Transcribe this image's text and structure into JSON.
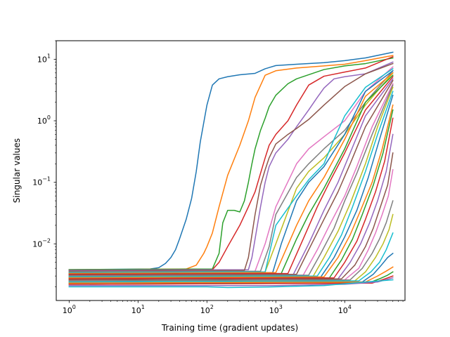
{
  "chart_data": {
    "type": "line",
    "title": "",
    "xlabel": "Training time (gradient updates)",
    "ylabel": "Singular values",
    "xscale": "log",
    "yscale": "log",
    "xlim": [
      0.65,
      75000
    ],
    "ylim": [
      0.0012,
      20
    ],
    "grid": false,
    "legend": "none",
    "x_ticks": [
      {
        "value": 1,
        "label": "10",
        "exp": "0"
      },
      {
        "value": 10,
        "label": "10",
        "exp": "1"
      },
      {
        "value": 100,
        "label": "10",
        "exp": "2"
      },
      {
        "value": 1000,
        "label": "10",
        "exp": "3"
      },
      {
        "value": 10000,
        "label": "10",
        "exp": "4"
      }
    ],
    "y_ticks": [
      {
        "value": 0.01,
        "label": "10",
        "exp": "−2"
      },
      {
        "value": 0.1,
        "label": "10",
        "exp": "−1"
      },
      {
        "value": 1,
        "label": "10",
        "exp": "0"
      },
      {
        "value": 10,
        "label": "10",
        "exp": "1"
      }
    ],
    "palette": [
      "#1f77b4",
      "#ff7f0e",
      "#2ca02c",
      "#d62728",
      "#9467bd",
      "#8c564b",
      "#e377c2",
      "#7f7f7f",
      "#bcbd22",
      "#17becf"
    ],
    "series": [
      {
        "color": "#1f77b4",
        "x": [
          1,
          15,
          20,
          25,
          30,
          35,
          40,
          50,
          60,
          70,
          80,
          100,
          120,
          150,
          200,
          300,
          500,
          700,
          1000,
          2000,
          5000,
          10000,
          20000,
          50000
        ],
        "y": [
          0.0038,
          0.0039,
          0.0041,
          0.0048,
          0.006,
          0.008,
          0.012,
          0.025,
          0.055,
          0.15,
          0.45,
          1.8,
          3.8,
          4.8,
          5.2,
          5.6,
          5.9,
          7.0,
          7.9,
          8.3,
          8.8,
          9.5,
          10.5,
          13
        ]
      },
      {
        "color": "#ff7f0e",
        "x": [
          1,
          50,
          70,
          90,
          100,
          120,
          150,
          200,
          300,
          400,
          500,
          700,
          1000,
          2000,
          5000,
          10000,
          20000,
          50000
        ],
        "y": [
          0.0038,
          0.0039,
          0.0045,
          0.007,
          0.009,
          0.015,
          0.04,
          0.13,
          0.4,
          1.0,
          2.4,
          5.5,
          6.5,
          7.2,
          7.8,
          8.3,
          9.5,
          11.5
        ]
      },
      {
        "color": "#2ca02c",
        "x": [
          1,
          120,
          150,
          170,
          200,
          250,
          300,
          350,
          400,
          450,
          500,
          600,
          700,
          800,
          1000,
          1500,
          2000,
          3000,
          5000,
          10000,
          20000,
          50000
        ],
        "y": [
          0.0038,
          0.0039,
          0.007,
          0.022,
          0.035,
          0.035,
          0.033,
          0.05,
          0.1,
          0.2,
          0.35,
          0.7,
          1.1,
          1.7,
          2.6,
          4.0,
          4.8,
          5.6,
          6.8,
          7.8,
          8.5,
          10.5
        ]
      },
      {
        "color": "#d62728",
        "x": [
          1,
          120,
          150,
          200,
          300,
          400,
          500,
          600,
          700,
          800,
          1000,
          1500,
          2000,
          3000,
          5000,
          10000,
          20000,
          50000
        ],
        "y": [
          0.0037,
          0.0038,
          0.005,
          0.009,
          0.02,
          0.04,
          0.07,
          0.14,
          0.25,
          0.4,
          0.6,
          1.0,
          1.8,
          3.8,
          5.3,
          6.2,
          7.2,
          11
        ]
      },
      {
        "color": "#9467bd",
        "x": [
          1,
          400,
          450,
          500,
          600,
          700,
          800,
          1000,
          1500,
          2000,
          3000,
          4000,
          5000,
          7000,
          10000,
          20000,
          50000
        ],
        "y": [
          0.0037,
          0.0038,
          0.006,
          0.012,
          0.04,
          0.1,
          0.18,
          0.3,
          0.5,
          0.8,
          1.5,
          2.4,
          3.4,
          4.8,
          5.2,
          5.8,
          9
        ]
      },
      {
        "color": "#8c564b",
        "x": [
          1,
          350,
          400,
          500,
          600,
          700,
          800,
          1000,
          1500,
          2000,
          3000,
          5000,
          10000,
          20000,
          50000
        ],
        "y": [
          0.0036,
          0.0037,
          0.006,
          0.03,
          0.09,
          0.16,
          0.25,
          0.42,
          0.6,
          0.75,
          1.05,
          1.8,
          3.6,
          5.8,
          8.5
        ]
      },
      {
        "color": "#e377c2",
        "x": [
          1,
          500,
          700,
          1000,
          2000,
          3000,
          5000,
          10000,
          20000,
          30000,
          50000
        ],
        "y": [
          0.0035,
          0.0036,
          0.01,
          0.04,
          0.2,
          0.35,
          0.55,
          1.0,
          3.0,
          4.5,
          7.5
        ]
      },
      {
        "color": "#7f7f7f",
        "x": [
          1,
          600,
          800,
          1000,
          2000,
          3000,
          5000,
          10000,
          20000,
          50000
        ],
        "y": [
          0.0035,
          0.0036,
          0.009,
          0.03,
          0.12,
          0.2,
          0.35,
          0.7,
          2.0,
          6.5
        ]
      },
      {
        "color": "#bcbd22",
        "x": [
          1,
          700,
          1000,
          2000,
          3000,
          5000,
          10000,
          20000,
          50000
        ],
        "y": [
          0.0034,
          0.0035,
          0.01,
          0.08,
          0.15,
          0.25,
          0.6,
          1.8,
          6.0
        ]
      },
      {
        "color": "#17becf",
        "x": [
          1,
          700,
          1000,
          2000,
          3000,
          5000,
          7000,
          10000,
          20000,
          50000
        ],
        "y": [
          0.0034,
          0.0035,
          0.02,
          0.06,
          0.11,
          0.2,
          0.5,
          1.2,
          3.5,
          7.0
        ]
      },
      {
        "color": "#1f77b4",
        "x": [
          1,
          900,
          1200,
          2000,
          3000,
          5000,
          10000,
          20000,
          50000
        ],
        "y": [
          0.0033,
          0.0034,
          0.01,
          0.05,
          0.1,
          0.18,
          0.6,
          3.0,
          6.5
        ]
      },
      {
        "color": "#ff7f0e",
        "x": [
          1,
          1000,
          2000,
          3000,
          5000,
          10000,
          20000,
          50000
        ],
        "y": [
          0.0033,
          0.0034,
          0.02,
          0.05,
          0.12,
          0.5,
          2.5,
          6.0
        ]
      },
      {
        "color": "#2ca02c",
        "x": [
          1,
          1200,
          2000,
          3000,
          5000,
          10000,
          20000,
          50000
        ],
        "y": [
          0.0032,
          0.0033,
          0.012,
          0.03,
          0.08,
          0.35,
          2.0,
          5.5
        ]
      },
      {
        "color": "#d62728",
        "x": [
          1,
          1500,
          2500,
          4000,
          6000,
          10000,
          20000,
          50000
        ],
        "y": [
          0.0032,
          0.0033,
          0.012,
          0.04,
          0.1,
          0.3,
          1.5,
          5.2
        ]
      },
      {
        "color": "#9467bd",
        "x": [
          1,
          1800,
          3000,
          5000,
          8000,
          12000,
          20000,
          50000
        ],
        "y": [
          0.0031,
          0.0032,
          0.01,
          0.035,
          0.1,
          0.3,
          1.2,
          4.8
        ]
      },
      {
        "color": "#8c564b",
        "x": [
          1,
          2000,
          3000,
          5000,
          8000,
          12000,
          20000,
          50000
        ],
        "y": [
          0.0031,
          0.0032,
          0.008,
          0.025,
          0.07,
          0.2,
          0.8,
          4.5
        ]
      },
      {
        "color": "#e377c2",
        "x": [
          1,
          2500,
          4000,
          6000,
          10000,
          15000,
          25000,
          50000
        ],
        "y": [
          0.003,
          0.0031,
          0.008,
          0.02,
          0.06,
          0.18,
          0.8,
          4.0
        ]
      },
      {
        "color": "#7f7f7f",
        "x": [
          1,
          3000,
          4500,
          7000,
          10000,
          15000,
          25000,
          50000
        ],
        "y": [
          0.003,
          0.0031,
          0.007,
          0.018,
          0.05,
          0.14,
          0.6,
          3.8
        ]
      },
      {
        "color": "#bcbd22",
        "x": [
          1,
          3500,
          5000,
          8000,
          12000,
          20000,
          30000,
          50000
        ],
        "y": [
          0.0029,
          0.003,
          0.006,
          0.016,
          0.045,
          0.2,
          0.8,
          3.5
        ]
      },
      {
        "color": "#17becf",
        "x": [
          1,
          4000,
          6000,
          9000,
          13000,
          20000,
          30000,
          50000
        ],
        "y": [
          0.0029,
          0.003,
          0.006,
          0.014,
          0.04,
          0.15,
          0.6,
          3.0
        ]
      },
      {
        "color": "#1f77b4",
        "x": [
          1,
          4500,
          7000,
          10000,
          15000,
          22000,
          32000,
          50000
        ],
        "y": [
          0.0028,
          0.0029,
          0.006,
          0.013,
          0.035,
          0.12,
          0.5,
          2.6
        ]
      },
      {
        "color": "#ff7f0e",
        "x": [
          1,
          5000,
          8000,
          12000,
          17000,
          25000,
          35000,
          50000
        ],
        "y": [
          0.0028,
          0.0029,
          0.006,
          0.014,
          0.035,
          0.1,
          0.35,
          1.8
        ]
      },
      {
        "color": "#2ca02c",
        "x": [
          1,
          6000,
          9000,
          13000,
          18000,
          26000,
          36000,
          50000
        ],
        "y": [
          0.0027,
          0.0028,
          0.0055,
          0.012,
          0.03,
          0.09,
          0.3,
          1.5
        ]
      },
      {
        "color": "#d62728",
        "x": [
          1,
          7000,
          10000,
          15000,
          20000,
          28000,
          38000,
          50000
        ],
        "y": [
          0.0027,
          0.0028,
          0.005,
          0.011,
          0.025,
          0.07,
          0.22,
          1.1
        ]
      },
      {
        "color": "#9467bd",
        "x": [
          1,
          8000,
          12000,
          17000,
          23000,
          30000,
          40000,
          50000
        ],
        "y": [
          0.0026,
          0.0027,
          0.005,
          0.01,
          0.022,
          0.05,
          0.15,
          0.6
        ]
      },
      {
        "color": "#8c564b",
        "x": [
          1,
          9000,
          14000,
          20000,
          26000,
          33000,
          42000,
          50000
        ],
        "y": [
          0.0026,
          0.0027,
          0.0045,
          0.009,
          0.018,
          0.04,
          0.09,
          0.3
        ]
      },
      {
        "color": "#e377c2",
        "x": [
          1,
          10000,
          16000,
          22000,
          28000,
          35000,
          43000,
          50000
        ],
        "y": [
          0.0025,
          0.0026,
          0.004,
          0.008,
          0.015,
          0.03,
          0.06,
          0.16
        ]
      },
      {
        "color": "#7f7f7f",
        "x": [
          1,
          12000,
          18000,
          25000,
          32000,
          40000,
          50000
        ],
        "y": [
          0.0025,
          0.0026,
          0.004,
          0.007,
          0.012,
          0.022,
          0.05
        ]
      },
      {
        "color": "#bcbd22",
        "x": [
          1,
          14000,
          20000,
          28000,
          36000,
          44000,
          50000
        ],
        "y": [
          0.0024,
          0.0025,
          0.0035,
          0.006,
          0.01,
          0.017,
          0.03
        ]
      },
      {
        "color": "#17becf",
        "x": [
          1,
          16000,
          24000,
          32000,
          40000,
          50000
        ],
        "y": [
          0.0024,
          0.0025,
          0.0035,
          0.005,
          0.008,
          0.015
        ]
      },
      {
        "color": "#1f77b4",
        "x": [
          1,
          18000,
          26000,
          34000,
          42000,
          50000
        ],
        "y": [
          0.0023,
          0.0024,
          0.0032,
          0.0045,
          0.006,
          0.007
        ]
      },
      {
        "color": "#ff7f0e",
        "x": [
          1,
          20000,
          30000,
          40000,
          50000
        ],
        "y": [
          0.0023,
          0.0024,
          0.003,
          0.0036,
          0.0042
        ]
      },
      {
        "color": "#2ca02c",
        "x": [
          1,
          22000,
          32000,
          42000,
          50000
        ],
        "y": [
          0.0022,
          0.0023,
          0.0027,
          0.0031,
          0.0035
        ]
      },
      {
        "color": "#d62728",
        "x": [
          1,
          25000,
          35000,
          50000
        ],
        "y": [
          0.0022,
          0.0023,
          0.0026,
          0.003
        ]
      },
      {
        "color": "#9467bd",
        "x": [
          1,
          1000,
          10000,
          30000,
          50000
        ],
        "y": [
          0.0021,
          0.0021,
          0.0022,
          0.0024,
          0.0028
        ]
      },
      {
        "color": "#17becf",
        "x": [
          1,
          100,
          200,
          1000,
          5000,
          20000,
          50000
        ],
        "y": [
          0.002,
          0.002,
          0.00195,
          0.002,
          0.0021,
          0.0024,
          0.0026
        ]
      }
    ]
  }
}
